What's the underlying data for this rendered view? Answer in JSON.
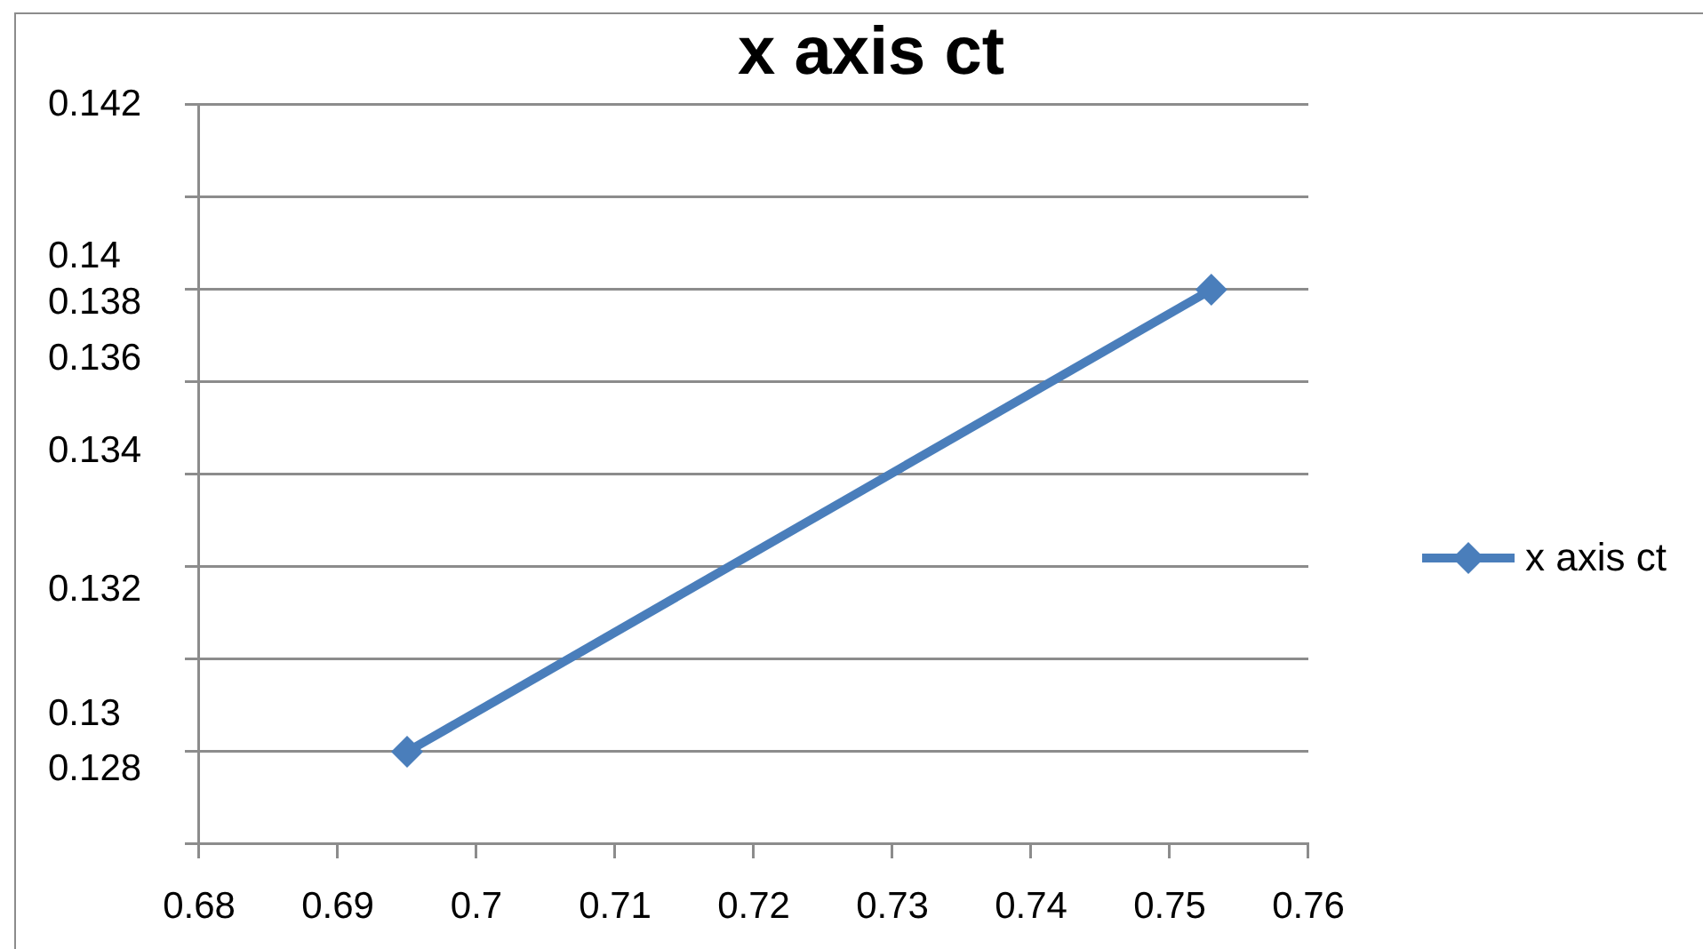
{
  "chart_data": {
    "type": "line",
    "title": "x axis ct",
    "x": [
      0.695,
      0.753
    ],
    "series": [
      {
        "name": "x axis ct",
        "color": "#4a7ebb",
        "values": [
          0.128,
          0.138
        ]
      }
    ],
    "xlim": [
      0.68,
      0.76
    ],
    "xticks": [
      0.68,
      0.69,
      0.7,
      0.71,
      0.72,
      0.73,
      0.74,
      0.75,
      0.76
    ],
    "ylim": [
      0.126,
      0.142
    ],
    "yticks": [
      {
        "value": 0.126,
        "label": null
      },
      {
        "value": 0.1276,
        "label": "0.128"
      },
      {
        "value": 0.128,
        "label": null
      },
      {
        "value": 0.1288,
        "label": "0.13"
      },
      {
        "value": 0.13,
        "label": null
      },
      {
        "value": 0.1315,
        "label": "0.132"
      },
      {
        "value": 0.132,
        "label": null
      },
      {
        "value": 0.134,
        "label": null
      },
      {
        "value": 0.1345,
        "label": "0.134"
      },
      {
        "value": 0.1365,
        "label": "0.136"
      },
      {
        "value": 0.136,
        "label": null
      },
      {
        "value": 0.1377,
        "label": "0.138"
      },
      {
        "value": 0.138,
        "label": null
      },
      {
        "value": 0.1387,
        "label": "0.14"
      },
      {
        "value": 0.14,
        "label": null
      },
      0.142
    ],
    "grid": "y",
    "legend": "right",
    "marker": "diamond",
    "line_style": "solid"
  }
}
